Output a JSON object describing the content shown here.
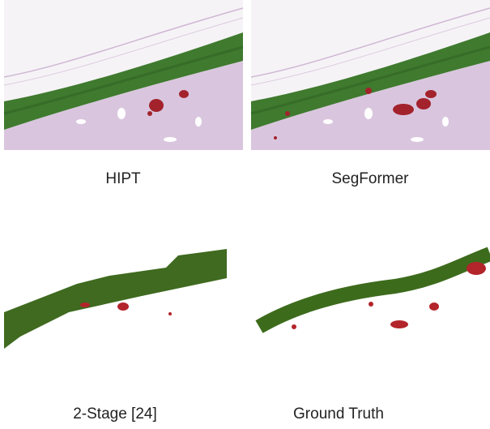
{
  "figure": {
    "panels": [
      {
        "caption": "HIPT"
      },
      {
        "caption": "SegFormer"
      },
      {
        "caption": "2-Stage [24]"
      },
      {
        "caption": "Ground Truth"
      }
    ]
  }
}
